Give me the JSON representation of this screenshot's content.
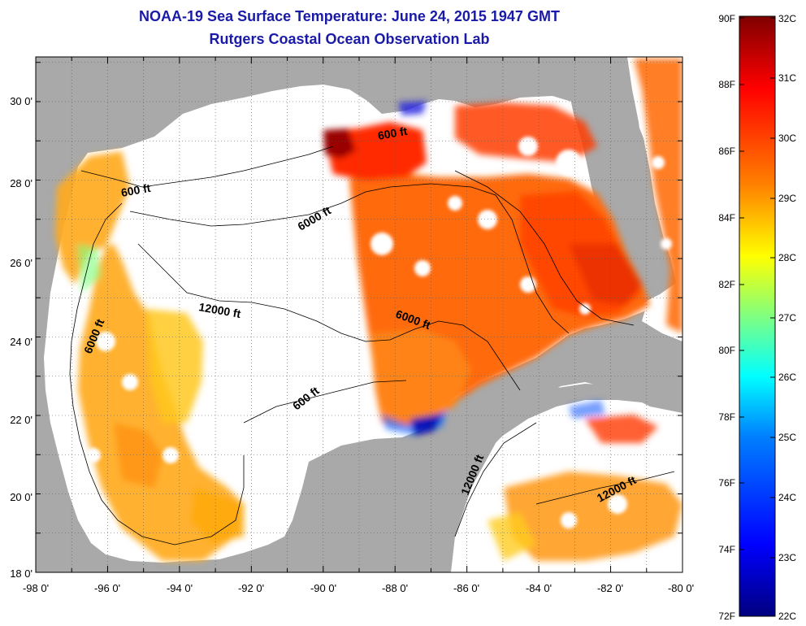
{
  "title": "NOAA-19 Sea Surface Temperature:  June 24, 2015 1947 GMT",
  "subtitle": "Rutgers Coastal Ocean Observation Lab",
  "lon_ticks": [
    "-98 0'",
    "-96 0'",
    "-94 0'",
    "-92 0'",
    "-90 0'",
    "-88 0'",
    "-86 0'",
    "-84 0'",
    "-82 0'",
    "-80 0'"
  ],
  "lat_ticks": [
    "30 0'",
    "28 0'",
    "26 0'",
    "24 0'",
    "22 0'",
    "20 0'",
    "18 0'"
  ],
  "contour_labels": [
    "600 ft",
    "600 ft",
    "6000 ft",
    "12000 ft",
    "6000 ft",
    "6000 ft",
    "600 ft",
    "12000 ft",
    "12000 ft"
  ],
  "colorbar": {
    "fahrenheit": [
      "90F",
      "88F",
      "86F",
      "84F",
      "82F",
      "80F",
      "78F",
      "76F",
      "74F",
      "72F"
    ],
    "celsius": [
      "32C",
      "31C",
      "30C",
      "29C",
      "28C",
      "27C",
      "26C",
      "25C",
      "24C",
      "23C",
      "22C"
    ],
    "colors": [
      "#00007f",
      "#0000ff",
      "#0080ff",
      "#00ffff",
      "#80ff80",
      "#ffff00",
      "#ff8000",
      "#ff0000",
      "#7f0000"
    ]
  },
  "colors": {
    "land": "#a9a9a9",
    "title": "#1a1aa8"
  }
}
